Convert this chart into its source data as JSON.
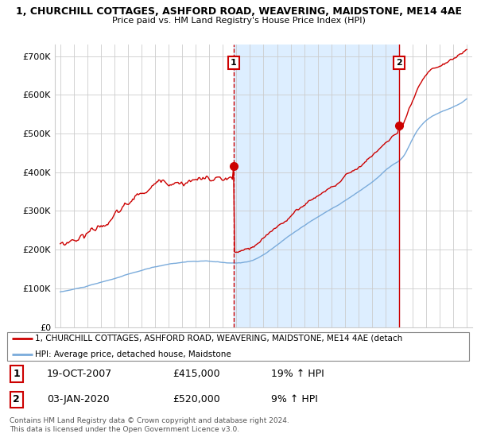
{
  "title_line1": "1, CHURCHILL COTTAGES, ASHFORD ROAD, WEAVERING, MAIDSTONE, ME14 4AE",
  "title_line2": "Price paid vs. HM Land Registry's House Price Index (HPI)",
  "ylim": [
    0,
    730000
  ],
  "yticks": [
    0,
    100000,
    200000,
    300000,
    400000,
    500000,
    600000,
    700000
  ],
  "ytick_labels": [
    "£0",
    "£100K",
    "£200K",
    "£300K",
    "£400K",
    "£500K",
    "£600K",
    "£700K"
  ],
  "year_start": 1995,
  "year_end": 2025,
  "purchase1_date": 2007.8,
  "purchase1_price": 415000,
  "purchase1_label": "1",
  "purchase1_text": "19-OCT-2007",
  "purchase1_amount": "£415,000",
  "purchase1_hpi": "19% ↑ HPI",
  "purchase2_date": 2020.0,
  "purchase2_price": 520000,
  "purchase2_label": "2",
  "purchase2_text": "03-JAN-2020",
  "purchase2_amount": "£520,000",
  "purchase2_hpi": "9% ↑ HPI",
  "property_line_color": "#cc0000",
  "hpi_line_color": "#7aabdb",
  "shade_color": "#ddeeff",
  "background_color": "#ffffff",
  "plot_bg_color": "#ffffff",
  "grid_color": "#cccccc",
  "legend_label_property": "1, CHURCHILL COTTAGES, ASHFORD ROAD, WEAVERING, MAIDSTONE, ME14 4AE (detach",
  "legend_label_hpi": "HPI: Average price, detached house, Maidstone",
  "footer_text": "Contains HM Land Registry data © Crown copyright and database right 2024.\nThis data is licensed under the Open Government Licence v3.0.",
  "marker_box_color": "#cc0000"
}
